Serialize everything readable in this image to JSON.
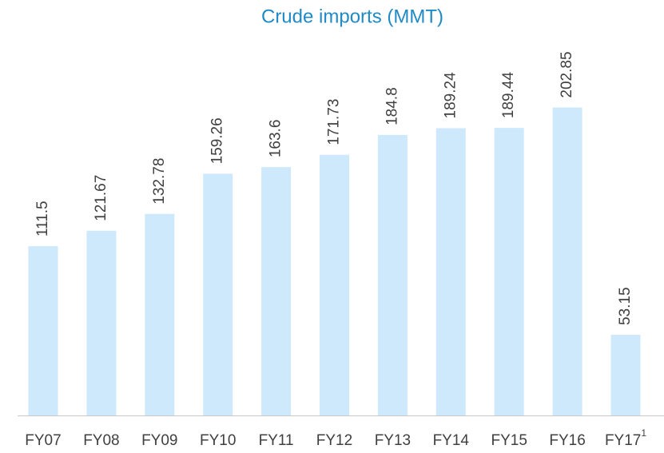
{
  "chart_data": {
    "type": "bar",
    "title": "Crude imports (MMT)",
    "categories": [
      "FY07",
      "FY08",
      "FY09",
      "FY10",
      "FY11",
      "FY12",
      "FY13",
      "FY14",
      "FY15",
      "FY16",
      "FY17"
    ],
    "category_superscripts": [
      null,
      null,
      null,
      null,
      null,
      null,
      null,
      null,
      null,
      null,
      "1"
    ],
    "values": [
      111.5,
      121.67,
      132.78,
      159.26,
      163.6,
      171.73,
      184.8,
      189.24,
      189.44,
      202.85,
      53.15
    ],
    "color": "#cfe9fc",
    "ylim": [
      0,
      220
    ]
  }
}
